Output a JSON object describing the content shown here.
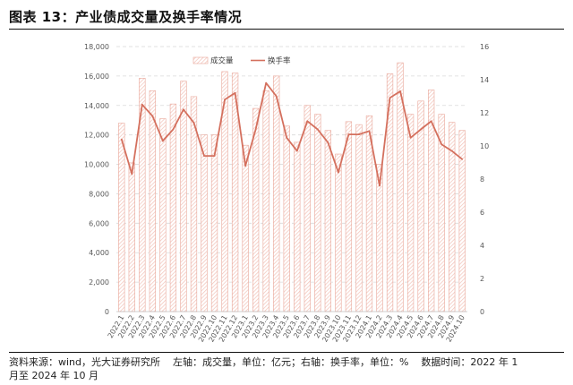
{
  "header": {
    "title": "图表 13：产业债成交量及换手率情况"
  },
  "footer": {
    "source_line1": "资料来源：wind，光大证券研究所    左轴：成交量，单位：亿元；右轴：换手率，单位：%    数据时间：2022 年 1",
    "source_line2": "月至 2024 年 10 月"
  },
  "colors": {
    "bar_stroke": "#e9a79a",
    "bar_hatch": "#f2c2b8",
    "line": "#d4705e",
    "grid": "#d9d9d9"
  },
  "chart_data": {
    "type": "bar",
    "categories": [
      "2022.1",
      "2022.2",
      "2022.3",
      "2022.4",
      "2022.5",
      "2022.6",
      "2022.7",
      "2022.8",
      "2022.9",
      "2022.10",
      "2022.11",
      "2022.12",
      "2023.1",
      "2023.2",
      "2023.3",
      "2023.4",
      "2023.5",
      "2023.6",
      "2023.7",
      "2023.8",
      "2023.9",
      "2023.10",
      "2023.11",
      "2023.12",
      "2024.1",
      "2024.2",
      "2024.3",
      "2024.4",
      "2024.5",
      "2024.6",
      "2024.7",
      "2024.8",
      "2024.9",
      "2024.10"
    ],
    "series": [
      {
        "name": "成交量",
        "type": "bar",
        "axis": "left",
        "values": [
          12800,
          10100,
          15850,
          15000,
          13100,
          14100,
          15650,
          14600,
          12000,
          12000,
          16300,
          16200,
          11300,
          13800,
          15000,
          16000,
          12600,
          11500,
          14000,
          13400,
          12300,
          10700,
          12900,
          12700,
          13300,
          10000,
          16150,
          16900,
          13400,
          14300,
          15050,
          13400,
          12850,
          12300
        ]
      },
      {
        "name": "换手率",
        "type": "line",
        "axis": "right",
        "values": [
          10.4,
          8.3,
          12.5,
          11.8,
          10.3,
          11.0,
          12.2,
          11.4,
          9.4,
          9.4,
          12.8,
          13.2,
          8.8,
          11.0,
          13.8,
          13.0,
          10.5,
          9.7,
          11.5,
          11.0,
          10.2,
          8.4,
          10.7,
          10.7,
          10.9,
          7.6,
          12.9,
          13.3,
          10.5,
          11.0,
          11.5,
          10.1,
          9.7,
          9.2
        ]
      }
    ],
    "yleft": {
      "min": 0,
      "max": 18000,
      "step": 2000,
      "ticks": [
        "0",
        "2,000",
        "4,000",
        "6,000",
        "8,000",
        "10,000",
        "12,000",
        "14,000",
        "16,000",
        "18,000"
      ]
    },
    "yright": {
      "min": 0,
      "max": 16,
      "step": 2,
      "ticks": [
        "0",
        "2",
        "4",
        "6",
        "8",
        "10",
        "12",
        "14",
        "16"
      ]
    },
    "grid": true,
    "legend_position": "top-center"
  }
}
